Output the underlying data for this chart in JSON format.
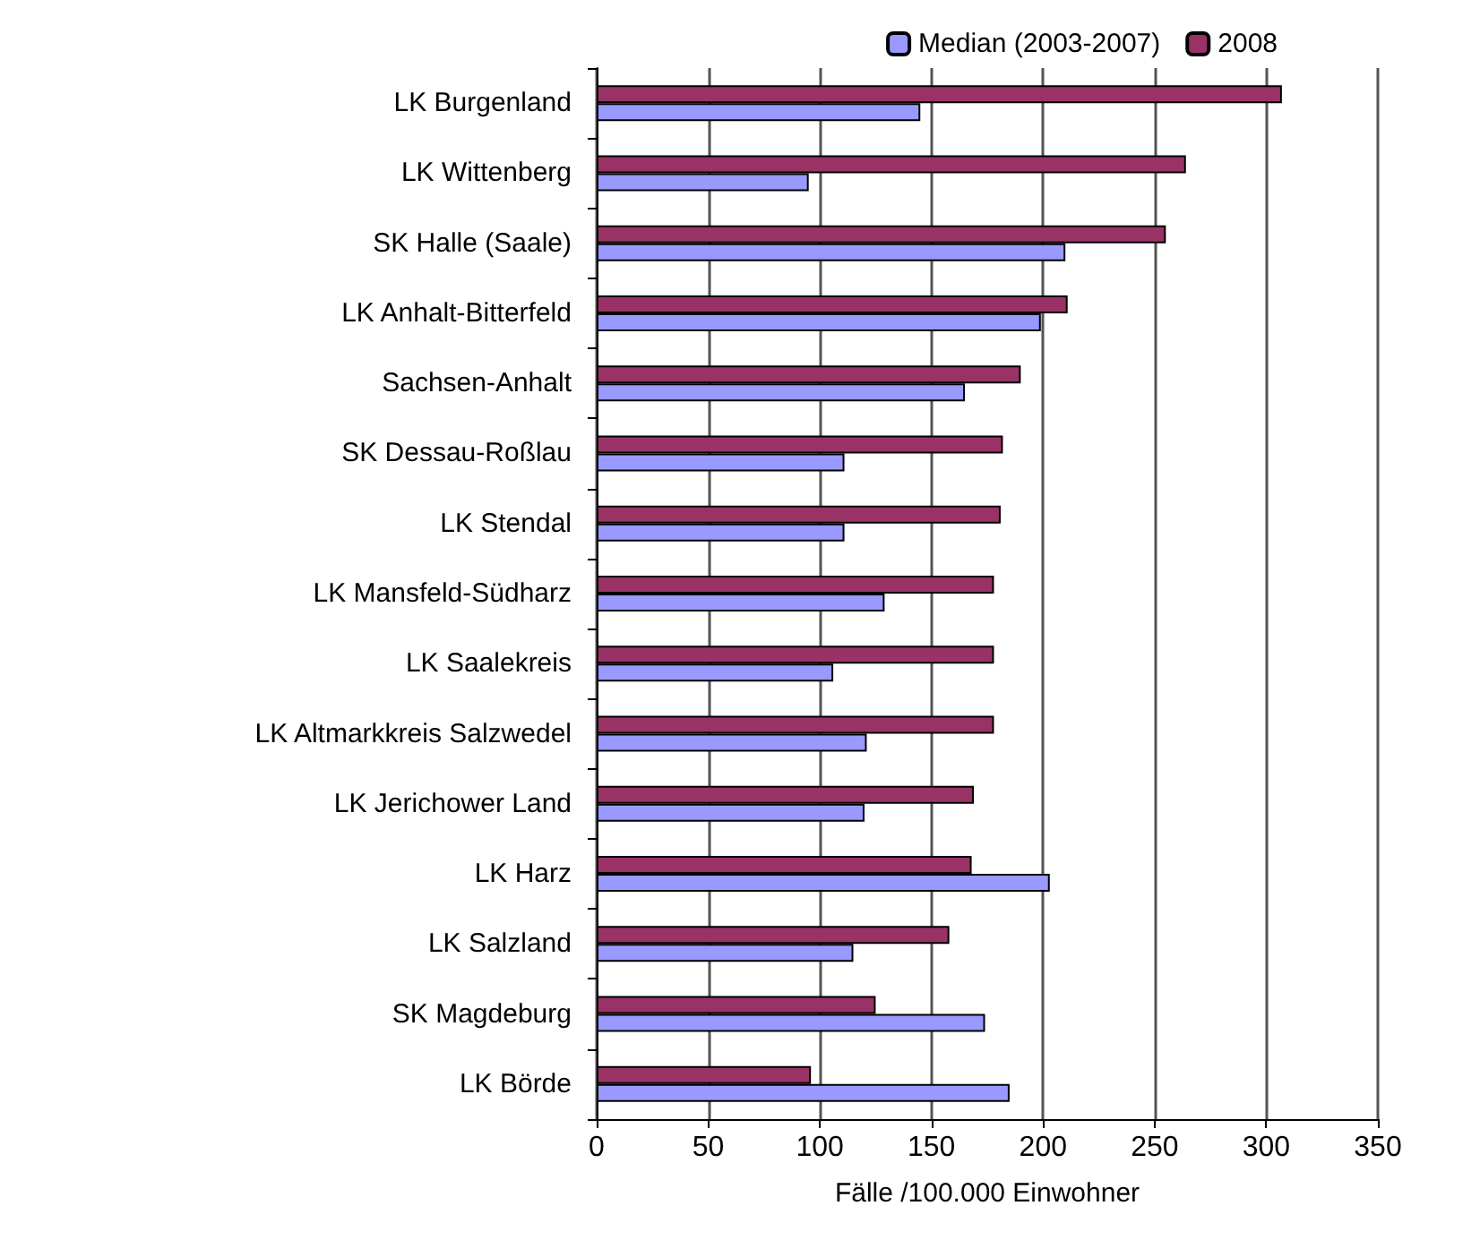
{
  "chart_data": {
    "type": "bar",
    "orientation": "horizontal",
    "xlabel": "Fälle /100.000 Einwohner",
    "categories": [
      "LK Burgenland",
      "LK Wittenberg",
      "SK Halle (Saale)",
      "LK Anhalt-Bitterfeld",
      "Sachsen-Anhalt",
      "SK Dessau-Roßlau",
      "LK Stendal",
      "LK Mansfeld-Südharz",
      "LK Saalekreis",
      "LK Altmarkkreis Salzwedel",
      "LK Jerichower Land",
      "LK Harz",
      "LK Salzland",
      "SK Magdeburg",
      "LK Börde"
    ],
    "series": [
      {
        "name": "Median (2003-2007)",
        "color": "#9999ff",
        "values": [
          145,
          95,
          210,
          199,
          165,
          111,
          111,
          129,
          106,
          121,
          120,
          203,
          115,
          174,
          185
        ]
      },
      {
        "name": "2008",
        "color": "#993366",
        "values": [
          307,
          264,
          255,
          211,
          190,
          182,
          181,
          178,
          178,
          178,
          169,
          168,
          158,
          125,
          96
        ]
      }
    ],
    "xlim": [
      0,
      350
    ],
    "xticks": [
      0,
      50,
      100,
      150,
      200,
      250,
      300,
      350
    ],
    "grid": "x",
    "legend": "top right"
  }
}
